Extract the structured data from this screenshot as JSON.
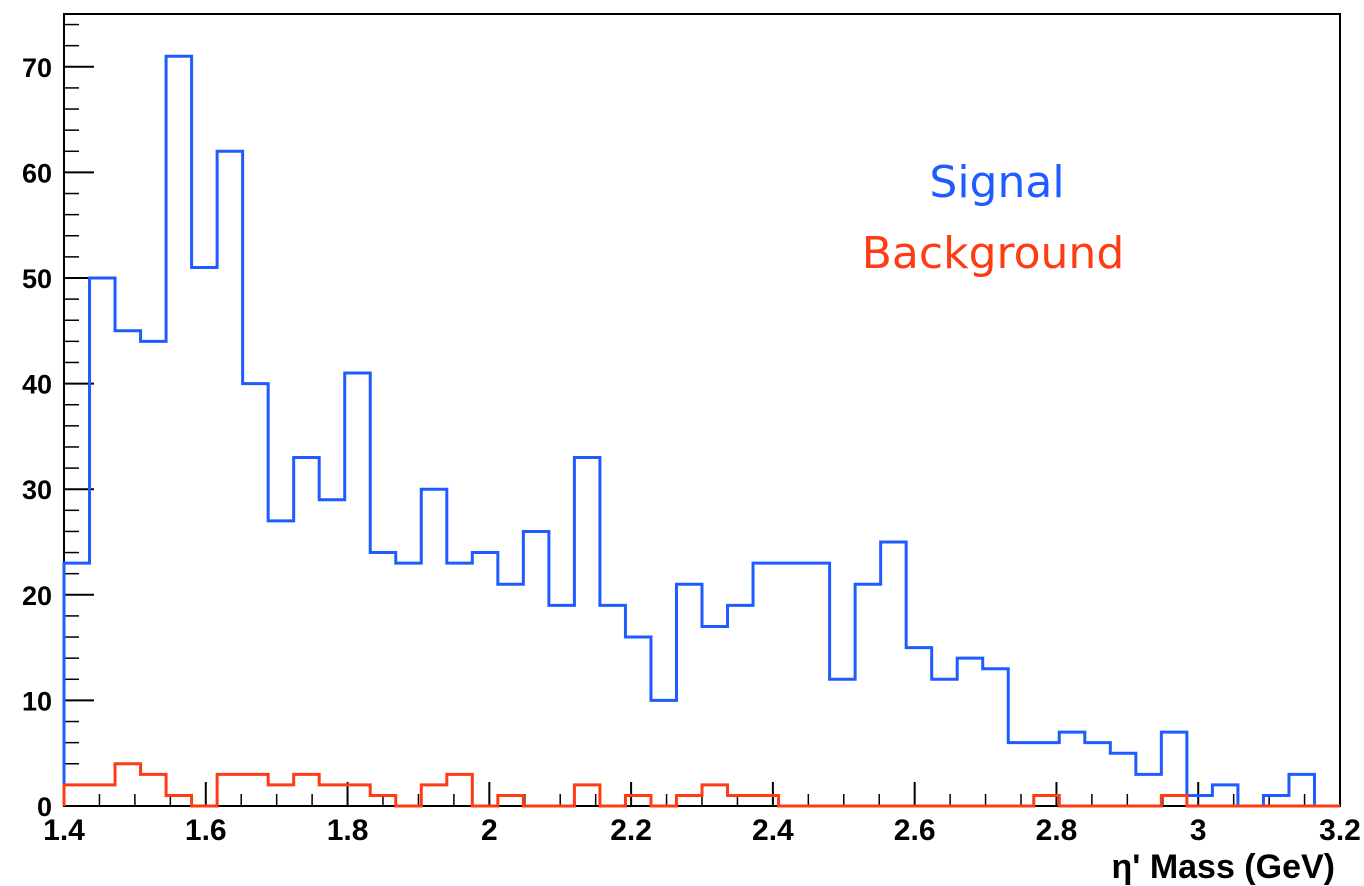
{
  "chart_data": {
    "type": "histogram",
    "xlabel": "η' Mass (GeV)",
    "ylabel": "",
    "xlim": [
      1.4,
      3.2
    ],
    "ylim": [
      0,
      75
    ],
    "bin_width": 0.036,
    "x_ticks": [
      "1.4",
      "1.6",
      "1.8",
      "2",
      "2.2",
      "2.4",
      "2.6",
      "2.8",
      "3",
      "3.2"
    ],
    "x_tick_values": [
      1.4,
      1.6,
      1.8,
      2.0,
      2.2,
      2.4,
      2.6,
      2.8,
      3.0,
      3.2
    ],
    "y_ticks": [
      "0",
      "10",
      "20",
      "30",
      "40",
      "50",
      "60",
      "70"
    ],
    "y_tick_values": [
      0,
      10,
      20,
      30,
      40,
      50,
      60,
      70
    ],
    "legend": {
      "placement": "top-right",
      "entries": [
        "Signal",
        "Background"
      ]
    },
    "grid": false,
    "series": [
      {
        "name": "Signal",
        "color": "#1f5cff",
        "values": [
          23,
          50,
          45,
          44,
          71,
          51,
          62,
          40,
          27,
          33,
          29,
          41,
          24,
          23,
          30,
          23,
          24,
          21,
          26,
          19,
          33,
          19,
          16,
          10,
          21,
          17,
          19,
          23,
          23,
          23,
          12,
          21,
          25,
          15,
          12,
          14,
          13,
          6,
          6,
          7,
          6,
          5,
          3,
          7,
          1,
          2,
          0,
          1,
          3,
          0
        ]
      },
      {
        "name": "Background",
        "color": "#ff3b14",
        "values": [
          2,
          2,
          4,
          3,
          1,
          0,
          3,
          3,
          2,
          3,
          2,
          2,
          1,
          0,
          2,
          3,
          0,
          1,
          0,
          0,
          2,
          0,
          1,
          0,
          1,
          2,
          1,
          1,
          0,
          0,
          0,
          0,
          0,
          0,
          0,
          0,
          0,
          0,
          1,
          0,
          0,
          0,
          0,
          1,
          0,
          0,
          0,
          0,
          0,
          0
        ]
      }
    ]
  }
}
